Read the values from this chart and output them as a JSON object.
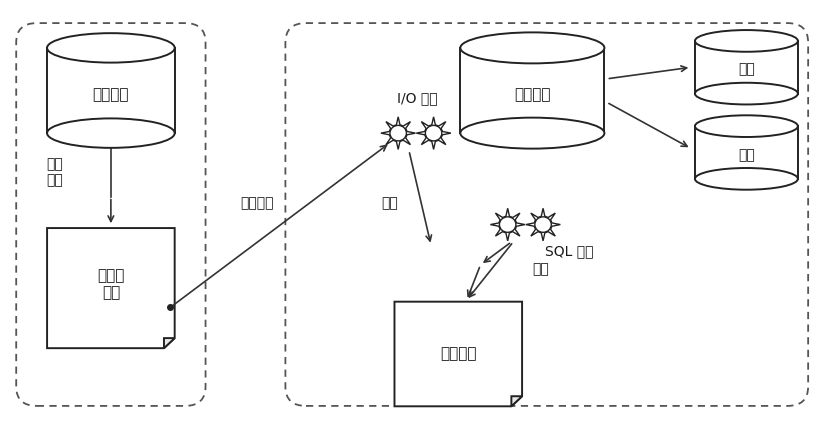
{
  "bg_color": "#ffffff",
  "labels": {
    "master_server": "主服务器",
    "data_change": "数据\n更改",
    "binary_log": "二进制\n日志",
    "io_thread": "I/O 线程",
    "slave_server": "从服务器",
    "sql_thread": "SQL 线程",
    "relay_log": "中继日志",
    "snapshot1": "快照",
    "snapshot2": "快照",
    "log_transfer": "日志传送",
    "write": "写入",
    "read": "读取"
  }
}
